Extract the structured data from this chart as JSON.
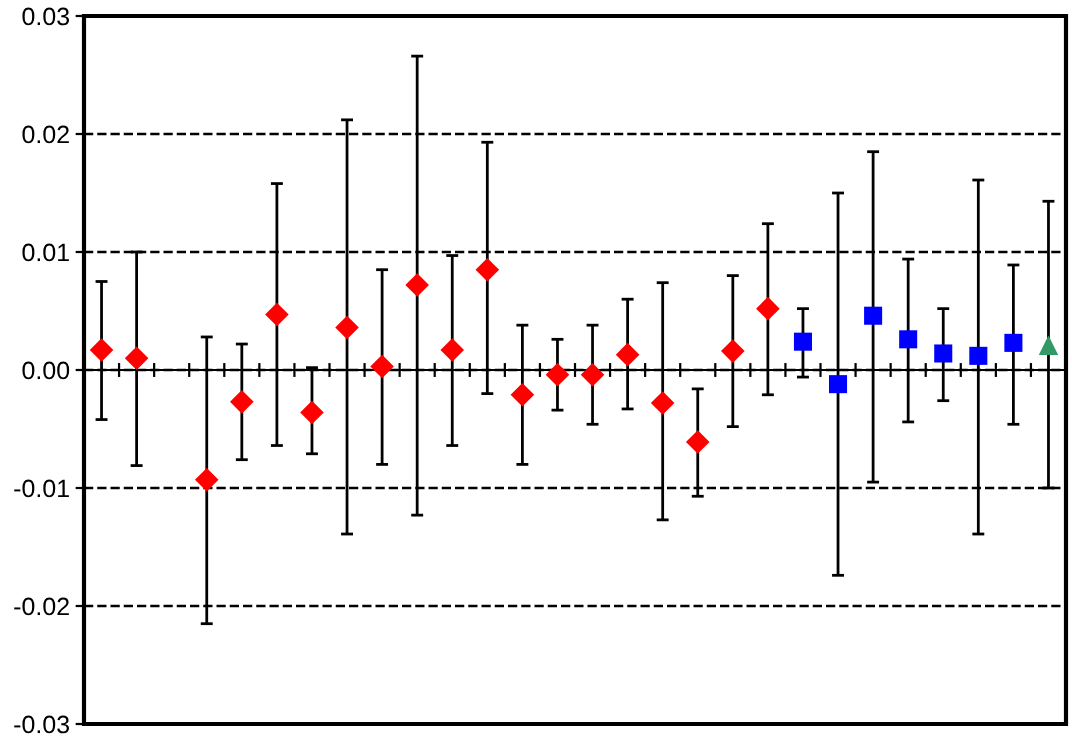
{
  "chart_data": {
    "type": "scatter",
    "categories": [
      null,
      null,
      null,
      null,
      null,
      null,
      null,
      null,
      null,
      null,
      null,
      null,
      null,
      null,
      null,
      null,
      null,
      null,
      null,
      null,
      null,
      null,
      null,
      null,
      null,
      null,
      null,
      null
    ],
    "series": [
      {
        "color": "#ff0000",
        "marker": "diamond",
        "values": [
          0.0017,
          0.001,
          null,
          -0.0093,
          -0.0027,
          0.0047,
          -0.0036,
          0.0036,
          0.0003,
          0.0072,
          0.0017,
          0.0085,
          -0.0021,
          -0.0004,
          -0.0004,
          0.0013,
          -0.0028,
          -0.0061,
          0.0016,
          0.0052,
          null,
          null,
          null,
          null,
          null,
          null,
          null,
          null
        ],
        "errors": [
          [
            -0.0042,
            0.0075
          ],
          [
            -0.0081,
            0.01
          ],
          null,
          [
            -0.0215,
            0.0028
          ],
          [
            -0.0076,
            0.0022
          ],
          [
            -0.0064,
            0.0158
          ],
          [
            -0.0071,
            0.0002
          ],
          [
            -0.0139,
            0.0212
          ],
          [
            -0.008,
            0.0085
          ],
          [
            -0.0123,
            0.0266
          ],
          [
            -0.0064,
            0.0097
          ],
          [
            -0.002,
            0.0193
          ],
          [
            -0.008,
            0.0038
          ],
          [
            -0.0034,
            0.0026
          ],
          [
            -0.0046,
            0.0038
          ],
          [
            -0.0033,
            0.006
          ],
          [
            -0.0127,
            0.0074
          ],
          [
            -0.0107,
            -0.0016
          ],
          [
            -0.0048,
            0.008
          ],
          [
            -0.0021,
            0.0124
          ],
          null,
          null,
          null,
          null,
          null,
          null,
          null,
          null
        ]
      },
      {
        "color": "#0000ff",
        "marker": "square",
        "values": [
          null,
          null,
          null,
          null,
          null,
          null,
          null,
          null,
          null,
          null,
          null,
          null,
          null,
          null,
          null,
          null,
          null,
          null,
          null,
          null,
          0.0024,
          -0.0012,
          0.0046,
          0.0026,
          0.0014,
          0.0012,
          0.0023,
          null
        ],
        "errors": [
          null,
          null,
          null,
          null,
          null,
          null,
          null,
          null,
          null,
          null,
          null,
          null,
          null,
          null,
          null,
          null,
          null,
          null,
          null,
          null,
          [
            -0.0006,
            0.0052
          ],
          [
            -0.0174,
            0.015
          ],
          [
            -0.0095,
            0.0185
          ],
          [
            -0.0044,
            0.0094
          ],
          [
            -0.0026,
            0.0052
          ],
          [
            -0.0139,
            0.0161
          ],
          [
            -0.0046,
            0.0089
          ],
          null
        ]
      },
      {
        "color": "#339966",
        "marker": "triangle",
        "values": [
          null,
          null,
          null,
          null,
          null,
          null,
          null,
          null,
          null,
          null,
          null,
          null,
          null,
          null,
          null,
          null,
          null,
          null,
          null,
          null,
          null,
          null,
          null,
          null,
          null,
          null,
          null,
          0.0021
        ],
        "errors": [
          null,
          null,
          null,
          null,
          null,
          null,
          null,
          null,
          null,
          null,
          null,
          null,
          null,
          null,
          null,
          null,
          null,
          null,
          null,
          null,
          null,
          null,
          null,
          null,
          null,
          null,
          null,
          [
            -0.01,
            0.0143
          ]
        ]
      }
    ],
    "ylim": [
      -0.03,
      0.03
    ],
    "yticks": [
      -0.03,
      -0.02,
      -0.01,
      {
        "value": 0,
        "label": "0.00"
      },
      0.01,
      0.02,
      0.03
    ],
    "grid": "y",
    "line_style": "dashed"
  }
}
